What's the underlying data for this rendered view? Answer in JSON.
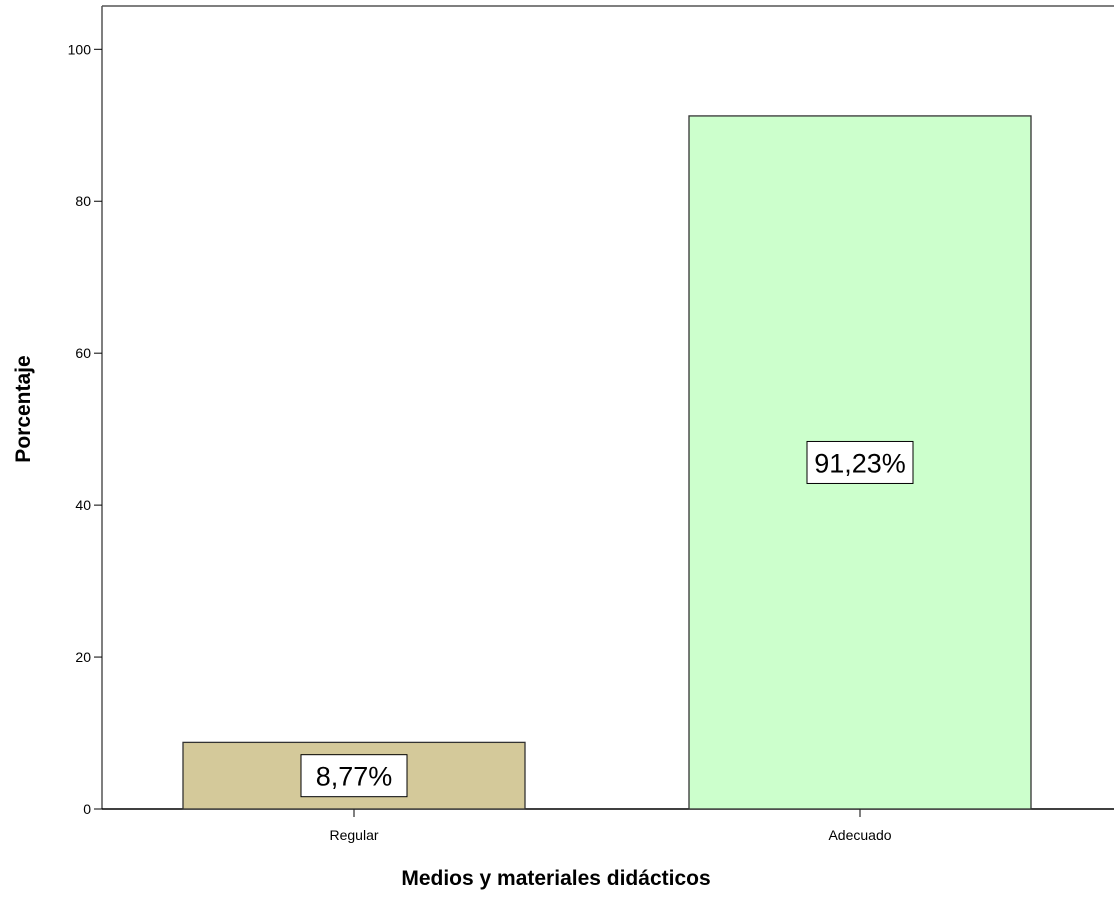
{
  "chart_data": {
    "type": "bar",
    "xlabel": "Medios y materiales didácticos",
    "ylabel": "Porcentaje",
    "categories": [
      "Regular",
      "Adecuado"
    ],
    "values": [
      8.77,
      91.23
    ],
    "data_labels": [
      "8,77%",
      "91,23%"
    ],
    "bar_colors": [
      "#d4c99a",
      "#ccffcc"
    ],
    "y_ticks": [
      0,
      20,
      40,
      60,
      80,
      100
    ],
    "y_tick_labels": [
      "0",
      "20",
      "40",
      "60",
      "80",
      "100"
    ],
    "ylim": [
      0,
      105.7
    ],
    "grid": false,
    "legend": "none"
  }
}
